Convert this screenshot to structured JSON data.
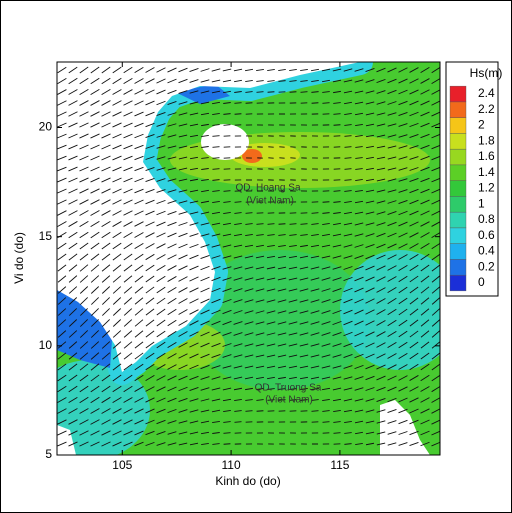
{
  "chart_data": {
    "type": "contour-map",
    "xlabel": "Kinh do (do)",
    "ylabel": "Vi do (do)",
    "xlim": [
      102,
      119.6
    ],
    "ylim": [
      5,
      23
    ],
    "xticks": [
      105,
      110,
      115
    ],
    "yticks": [
      5,
      10,
      15,
      20
    ],
    "colorbar": {
      "title": "Hs(m)",
      "levels": [
        0,
        0.2,
        0.4,
        0.6,
        0.8,
        1,
        1.2,
        1.4,
        1.6,
        1.8,
        2,
        2.2,
        2.4
      ],
      "colors": [
        "#1b2fd8",
        "#1e72e6",
        "#1fb1ee",
        "#2fd2e0",
        "#2fd3b0",
        "#2ecb6a",
        "#33c83a",
        "#5ccf26",
        "#98d820",
        "#c8e01e",
        "#f5c518",
        "#f26a1b",
        "#e8202a"
      ]
    },
    "annotations": [
      "QD. Hoang Sa",
      "(Viet Nam)",
      "QD. Truong Sa",
      "(Viet Nam)"
    ]
  }
}
